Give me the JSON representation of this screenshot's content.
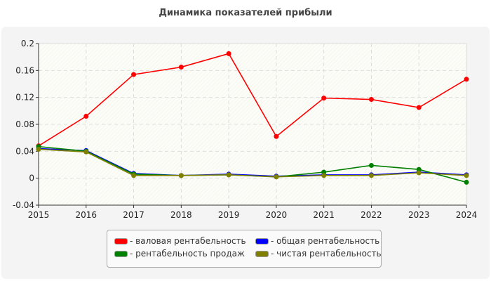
{
  "chart_data": {
    "type": "line",
    "title": "Динамика показателей прибыли",
    "x": [
      "2015",
      "2016",
      "2017",
      "2018",
      "2019",
      "2020",
      "2021",
      "2022",
      "2023",
      "2024"
    ],
    "ylim": [
      -0.04,
      0.2
    ],
    "yticks": [
      "-0.04",
      "0",
      "0.04",
      "0.08",
      "0.12",
      "0.16",
      "0.2"
    ],
    "grid": true,
    "legend_position": "bottom",
    "legend_prefix": "-",
    "series": [
      {
        "name": "валовая рентабельность",
        "color": "#ff0000",
        "values": [
          0.048,
          0.092,
          0.154,
          0.165,
          0.185,
          0.062,
          0.119,
          0.117,
          0.105,
          0.147
        ]
      },
      {
        "name": "общая рентабельность",
        "color": "#0000ff",
        "values": [
          0.044,
          0.041,
          0.007,
          0.004,
          0.006,
          0.003,
          0.005,
          0.005,
          0.009,
          0.005
        ]
      },
      {
        "name": "рентабельность продаж",
        "color": "#008000",
        "values": [
          0.047,
          0.04,
          0.006,
          0.004,
          0.005,
          0.002,
          0.009,
          0.019,
          0.013,
          -0.006
        ]
      },
      {
        "name": "чистая рентабельность",
        "color": "#808000",
        "values": [
          0.043,
          0.039,
          0.004,
          0.004,
          0.005,
          0.002,
          0.004,
          0.004,
          0.008,
          0.004
        ]
      }
    ]
  }
}
